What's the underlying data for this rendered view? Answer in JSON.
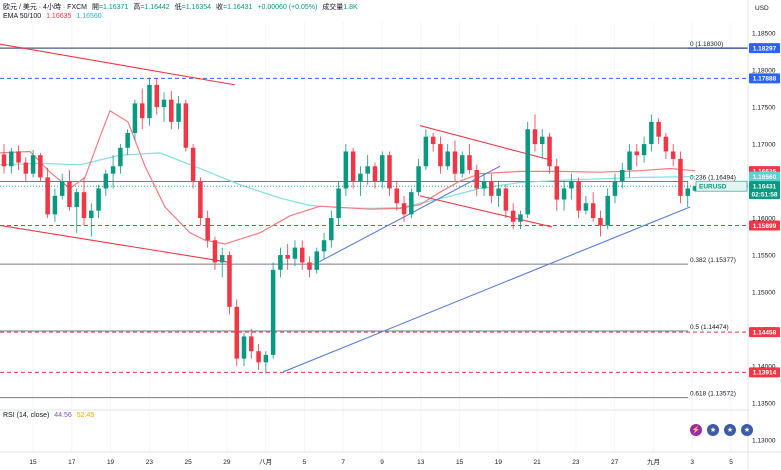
{
  "header": {
    "symbol_line": "欧元 / 美元 · 4小時 · FXCM",
    "open_label": "開",
    "open": "=1.16371",
    "high_label": "高",
    "high": "=1.16442",
    "low_label": "低",
    "low": "=1.16354",
    "close_label": "收",
    "close": "=1.16431",
    "change": "+0.00060 (+0.05%)",
    "volume_label": "成交量",
    "volume": "1.8K",
    "ema_label": "EMA 50/100",
    "ema50": "1.16635",
    "ema100": "1.16560",
    "currency": "USD"
  },
  "rsi": {
    "label": "RSI (14, close)",
    "value1": "44.56",
    "value2": "52.45"
  },
  "colors": {
    "up": "#089981",
    "down": "#f23645",
    "ema50": "#f77c80",
    "ema100": "#7fe0e0",
    "trend": "#5b7fd6"
  },
  "chart_data": {
    "type": "candlestick",
    "title": "EUR/USD 4H",
    "ylim": [
      1.13,
      1.1865
    ],
    "y_ticks": [
      "1.18500",
      "1.18000",
      "1.17500",
      "1.17000",
      "1.16500",
      "1.16000",
      "1.15500",
      "1.15000",
      "1.14500",
      "1.14000",
      "1.13500",
      "1.13000"
    ],
    "x_ticks": [
      "15",
      "17",
      "19",
      "23",
      "25",
      "29",
      "八月",
      "5",
      "7",
      "9",
      "13",
      "15",
      "19",
      "21",
      "23",
      "27",
      "九月",
      "3",
      "5"
    ],
    "candles": [
      [
        1.1686,
        1.17,
        1.166,
        1.167
      ],
      [
        1.167,
        1.1695,
        1.166,
        1.169
      ],
      [
        1.169,
        1.1698,
        1.1665,
        1.1675
      ],
      [
        1.1675,
        1.1682,
        1.165,
        1.166
      ],
      [
        1.166,
        1.1692,
        1.1655,
        1.1685
      ],
      [
        1.1685,
        1.1688,
        1.165,
        1.1655
      ],
      [
        1.1655,
        1.1668,
        1.16,
        1.1605
      ],
      [
        1.1605,
        1.164,
        1.1595,
        1.163
      ],
      [
        1.163,
        1.166,
        1.1625,
        1.165
      ],
      [
        1.165,
        1.1665,
        1.161,
        1.1615
      ],
      [
        1.1615,
        1.164,
        1.158,
        1.1635
      ],
      [
        1.1635,
        1.1655,
        1.159,
        1.16
      ],
      [
        1.16,
        1.162,
        1.1575,
        1.161
      ],
      [
        1.161,
        1.1645,
        1.16,
        1.164
      ],
      [
        1.164,
        1.1665,
        1.163,
        1.166
      ],
      [
        1.166,
        1.1685,
        1.164,
        1.167
      ],
      [
        1.167,
        1.17,
        1.166,
        1.1695
      ],
      [
        1.1695,
        1.172,
        1.1685,
        1.1715
      ],
      [
        1.1715,
        1.176,
        1.1705,
        1.1755
      ],
      [
        1.1755,
        1.1775,
        1.172,
        1.1735
      ],
      [
        1.1735,
        1.179,
        1.1725,
        1.178
      ],
      [
        1.178,
        1.1788,
        1.174,
        1.175
      ],
      [
        1.175,
        1.177,
        1.173,
        1.176
      ],
      [
        1.176,
        1.1772,
        1.172,
        1.173
      ],
      [
        1.173,
        1.1765,
        1.172,
        1.1755
      ],
      [
        1.1755,
        1.176,
        1.169,
        1.1695
      ],
      [
        1.1695,
        1.17,
        1.164,
        1.165
      ],
      [
        1.165,
        1.1655,
        1.159,
        1.16
      ],
      [
        1.16,
        1.161,
        1.156,
        1.157
      ],
      [
        1.157,
        1.1575,
        1.153,
        1.154
      ],
      [
        1.154,
        1.156,
        1.152,
        1.155
      ],
      [
        1.155,
        1.1555,
        1.147,
        1.148
      ],
      [
        1.148,
        1.149,
        1.14,
        1.141
      ],
      [
        1.141,
        1.1445,
        1.14,
        1.144
      ],
      [
        1.144,
        1.145,
        1.141,
        1.142
      ],
      [
        1.142,
        1.143,
        1.1395,
        1.1405
      ],
      [
        1.1405,
        1.142,
        1.139,
        1.1415
      ],
      [
        1.1415,
        1.154,
        1.141,
        1.153
      ],
      [
        1.153,
        1.156,
        1.152,
        1.155
      ],
      [
        1.155,
        1.1565,
        1.153,
        1.1545
      ],
      [
        1.1545,
        1.157,
        1.1535,
        1.156
      ],
      [
        1.156,
        1.157,
        1.153,
        1.154
      ],
      [
        1.154,
        1.1548,
        1.152,
        1.153
      ],
      [
        1.153,
        1.156,
        1.1525,
        1.1555
      ],
      [
        1.1555,
        1.158,
        1.1545,
        1.157
      ],
      [
        1.157,
        1.161,
        1.156,
        1.16
      ],
      [
        1.16,
        1.165,
        1.159,
        1.164
      ],
      [
        1.164,
        1.17,
        1.163,
        1.169
      ],
      [
        1.169,
        1.1695,
        1.164,
        1.165
      ],
      [
        1.165,
        1.167,
        1.163,
        1.166
      ],
      [
        1.166,
        1.1685,
        1.1645,
        1.167
      ],
      [
        1.167,
        1.1675,
        1.164,
        1.165
      ],
      [
        1.165,
        1.169,
        1.164,
        1.1685
      ],
      [
        1.1685,
        1.169,
        1.163,
        1.164
      ],
      [
        1.164,
        1.165,
        1.161,
        1.162
      ],
      [
        1.162,
        1.163,
        1.1595,
        1.1605
      ],
      [
        1.1605,
        1.164,
        1.16,
        1.1635
      ],
      [
        1.1635,
        1.168,
        1.163,
        1.167
      ],
      [
        1.167,
        1.172,
        1.1665,
        1.171
      ],
      [
        1.171,
        1.1715,
        1.169,
        1.17
      ],
      [
        1.17,
        1.171,
        1.166,
        1.167
      ],
      [
        1.167,
        1.17,
        1.1665,
        1.169
      ],
      [
        1.169,
        1.1705,
        1.165,
        1.166
      ],
      [
        1.166,
        1.169,
        1.1655,
        1.1685
      ],
      [
        1.1685,
        1.17,
        1.166,
        1.1665
      ],
      [
        1.1665,
        1.1672,
        1.163,
        1.164
      ],
      [
        1.164,
        1.166,
        1.163,
        1.165
      ],
      [
        1.165,
        1.166,
        1.162,
        1.163
      ],
      [
        1.163,
        1.165,
        1.1615,
        1.164
      ],
      [
        1.164,
        1.1645,
        1.16,
        1.161
      ],
      [
        1.161,
        1.162,
        1.1585,
        1.1595
      ],
      [
        1.1595,
        1.161,
        1.1585,
        1.1605
      ],
      [
        1.1605,
        1.173,
        1.16,
        1.172
      ],
      [
        1.172,
        1.174,
        1.169,
        1.17
      ],
      [
        1.17,
        1.172,
        1.168,
        1.171
      ],
      [
        1.171,
        1.1715,
        1.166,
        1.167
      ],
      [
        1.167,
        1.168,
        1.161,
        1.1625
      ],
      [
        1.1625,
        1.165,
        1.161,
        1.164
      ],
      [
        1.164,
        1.166,
        1.1625,
        1.165
      ],
      [
        1.165,
        1.1655,
        1.16,
        1.161
      ],
      [
        1.161,
        1.163,
        1.1605,
        1.162
      ],
      [
        1.162,
        1.1635,
        1.1595,
        1.16
      ],
      [
        1.16,
        1.161,
        1.1575,
        1.159
      ],
      [
        1.159,
        1.164,
        1.1585,
        1.163
      ],
      [
        1.163,
        1.166,
        1.162,
        1.165
      ],
      [
        1.165,
        1.1675,
        1.164,
        1.1665
      ],
      [
        1.1665,
        1.17,
        1.1655,
        1.169
      ],
      [
        1.169,
        1.17,
        1.167,
        1.1685
      ],
      [
        1.1685,
        1.171,
        1.1675,
        1.17
      ],
      [
        1.17,
        1.174,
        1.169,
        1.173
      ],
      [
        1.173,
        1.1735,
        1.17,
        1.171
      ],
      [
        1.171,
        1.1715,
        1.168,
        1.169
      ],
      [
        1.169,
        1.17,
        1.167,
        1.168
      ],
      [
        1.168,
        1.169,
        1.162,
        1.163
      ],
      [
        1.163,
        1.165,
        1.1615,
        1.164
      ],
      [
        1.1637,
        1.1644,
        1.1635,
        1.1643
      ]
    ],
    "ema50": [
      [
        0,
        1.1688
      ],
      [
        30,
        1.169
      ],
      [
        50,
        1.1662
      ],
      [
        70,
        1.164
      ],
      [
        85,
        1.1655
      ],
      [
        100,
        1.171
      ],
      [
        110,
        1.1745
      ],
      [
        128,
        1.173
      ],
      [
        145,
        1.167
      ],
      [
        165,
        1.1615
      ],
      [
        190,
        1.158
      ],
      [
        205,
        1.157
      ],
      [
        225,
        1.1565
      ],
      [
        260,
        1.158
      ],
      [
        290,
        1.1603
      ],
      [
        320,
        1.1616
      ],
      [
        345,
        1.1614
      ],
      [
        370,
        1.1612
      ],
      [
        400,
        1.1613
      ],
      [
        420,
        1.1618
      ],
      [
        440,
        1.1635
      ],
      [
        460,
        1.165
      ],
      [
        480,
        1.166
      ],
      [
        520,
        1.1663
      ],
      [
        560,
        1.1663
      ],
      [
        600,
        1.1662
      ],
      [
        640,
        1.1664
      ],
      [
        670,
        1.1667
      ],
      [
        695,
        1.1664
      ]
    ],
    "ema100": [
      [
        0,
        1.1672
      ],
      [
        40,
        1.1674
      ],
      [
        80,
        1.1672
      ],
      [
        120,
        1.1685
      ],
      [
        160,
        1.1688
      ],
      [
        200,
        1.1667
      ],
      [
        240,
        1.1645
      ],
      [
        280,
        1.1627
      ],
      [
        310,
        1.1617
      ],
      [
        340,
        1.1614
      ],
      [
        370,
        1.1613
      ],
      [
        400,
        1.1614
      ],
      [
        440,
        1.1626
      ],
      [
        480,
        1.164
      ],
      [
        520,
        1.1648
      ],
      [
        560,
        1.1651
      ],
      [
        600,
        1.1653
      ],
      [
        640,
        1.1655
      ],
      [
        695,
        1.1656
      ]
    ],
    "horizontal_levels": [
      {
        "label": "1.18297",
        "value": 1.18297,
        "style": "solid",
        "color": "#1e3a8a",
        "tag_color": "#2962ff"
      },
      {
        "label": "1.17888",
        "value": 1.17888,
        "style": "dashed",
        "color": "#2962ff",
        "tag_color": "#2962ff"
      },
      {
        "label": "1.16635",
        "value": 1.16635,
        "style": "none",
        "color": "#f23645",
        "tag_color": "#f23645"
      },
      {
        "label": "1.16560",
        "value": 1.1656,
        "style": "none",
        "color": "#7fe0e0",
        "tag_color": "#5ad2d2"
      },
      {
        "label": "1.15899",
        "value": 1.15899,
        "style": "dashed",
        "color": "#f23645",
        "tag_color": "#f23645"
      },
      {
        "label": "1.14458",
        "value": 1.14458,
        "style": "dashed",
        "color": "#f23645",
        "tag_color": "#f23645"
      },
      {
        "label": "1.13914",
        "value": 1.13914,
        "style": "dashed",
        "color": "#f23645",
        "tag_color": "#f23645"
      }
    ],
    "fib_levels": [
      {
        "ratio": "0",
        "label": "0 (1.18300)",
        "value": 1.183
      },
      {
        "ratio": "0.236",
        "label": "0.236 (1.16494)",
        "value": 1.16494
      },
      {
        "ratio": "0.382",
        "label": "0.382 (1.15377)",
        "value": 1.15377
      },
      {
        "ratio": "0.5",
        "label": "0.5 (1.14474)",
        "value": 1.14474
      },
      {
        "ratio": "0.618",
        "label": "0.618 (1.13572)",
        "value": 1.13572
      }
    ],
    "price_tag": {
      "symbol": "EURUSD",
      "price": "1.16431",
      "countdown": "02:51:58",
      "value": 1.16431
    },
    "trendlines": [
      {
        "x1": 0,
        "y1": 1.1835,
        "x2": 235,
        "y2": 1.178,
        "color": "#f23645"
      },
      {
        "x1": 0,
        "y1": 1.159,
        "x2": 230,
        "y2": 1.154,
        "color": "#f23645"
      },
      {
        "x1": 420,
        "y1": 1.1725,
        "x2": 552,
        "y2": 1.1678,
        "color": "#f23645"
      },
      {
        "x1": 420,
        "y1": 1.163,
        "x2": 552,
        "y2": 1.1588,
        "color": "#f23645"
      },
      {
        "x1": 318,
        "y1": 1.154,
        "x2": 500,
        "y2": 1.167,
        "color": "#5b7fd6"
      },
      {
        "x1": 283,
        "y1": 1.1392,
        "x2": 690,
        "y2": 1.1615,
        "color": "#5b7fd6"
      }
    ]
  }
}
